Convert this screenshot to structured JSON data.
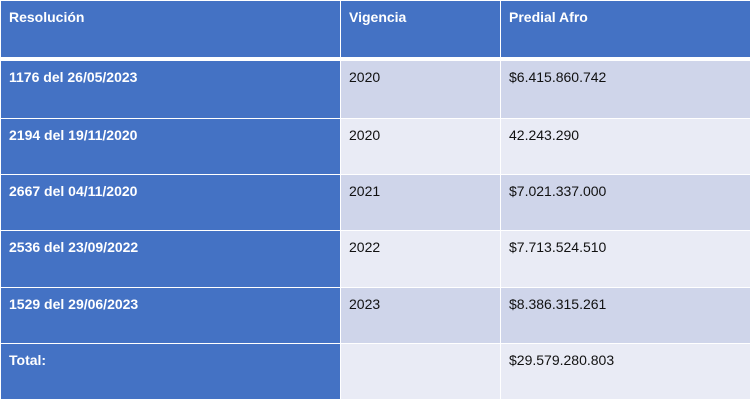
{
  "table": {
    "header": [
      "Resolución",
      "Vigencia",
      "Predial Afro"
    ],
    "rows": [
      [
        "1176 del 26/05/2023",
        "2020",
        "$6.415.860.742"
      ],
      [
        "2194 del 19/11/2020",
        "2020",
        "42.243.290"
      ],
      [
        "2667 del 04/11/2020",
        "2021",
        "$7.021.337.000"
      ],
      [
        "2536 del 23/09/2022",
        "2022",
        "$7.713.524.510"
      ],
      [
        "1529 del 29/06/2023",
        "2023",
        "$8.386.315.261"
      ]
    ],
    "total": {
      "label": "Total:",
      "value": "$29.579.280.803"
    }
  }
}
